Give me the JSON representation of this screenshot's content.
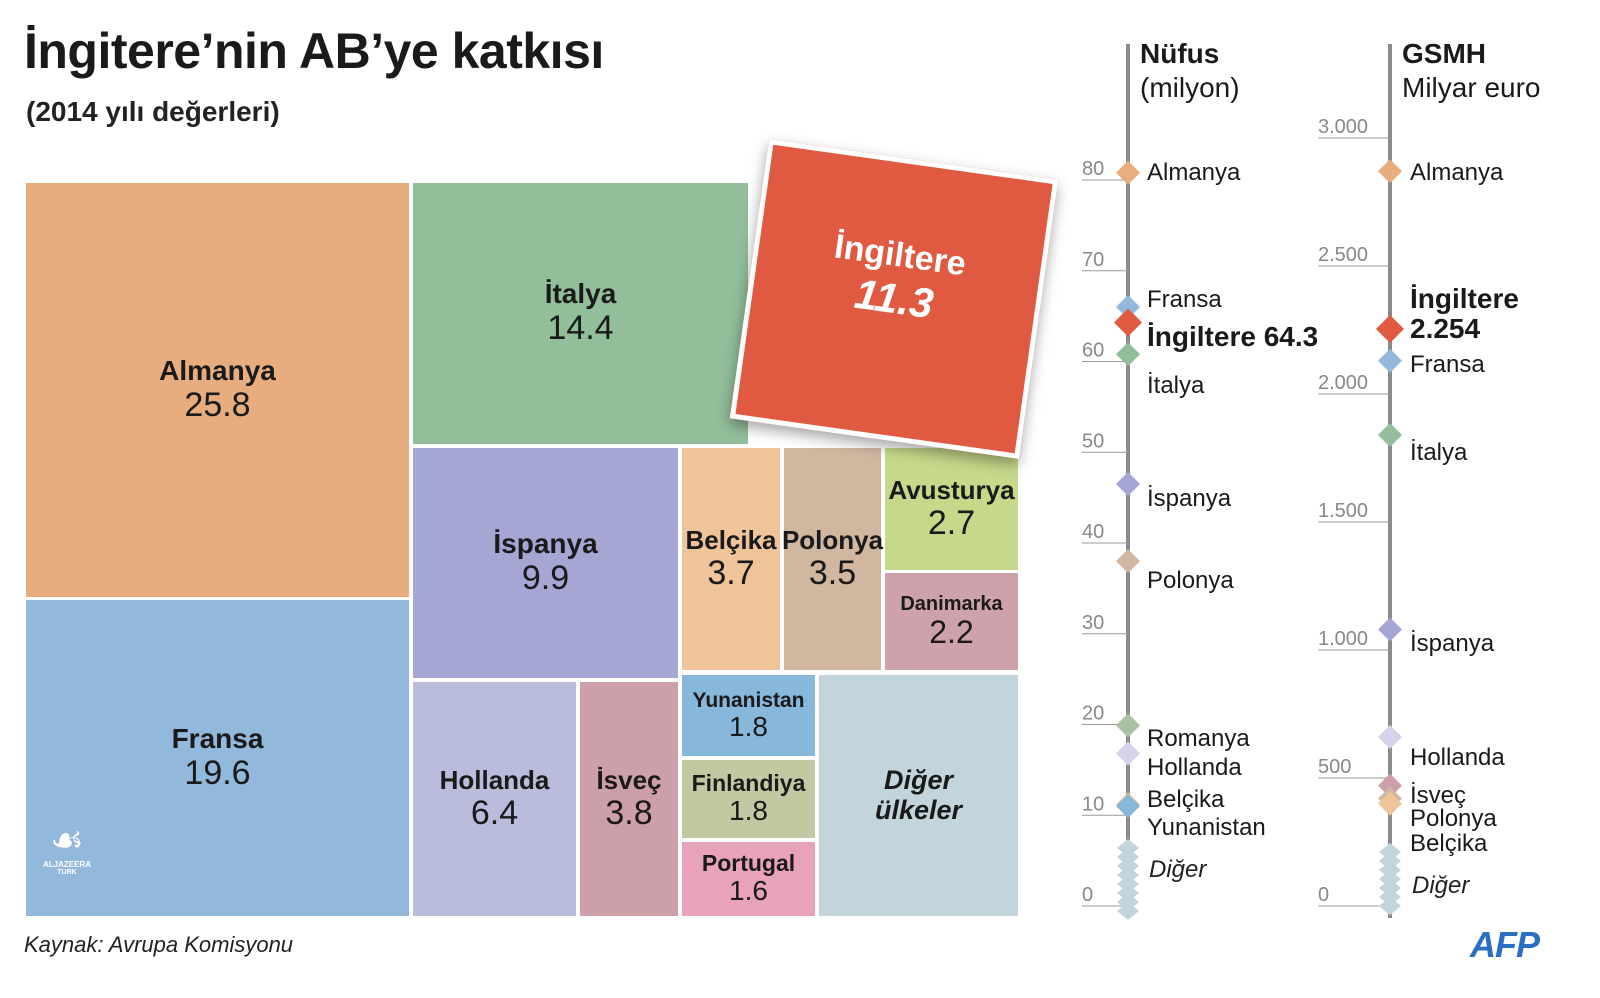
{
  "title": "İngitere’nin AB’ye katkısı",
  "subtitle": "(2014 yılı değerleri)",
  "source": "Kaynak: Avrupa Komisyonu",
  "brand_logo": {
    "glyph": "☙",
    "line1": "ALJAZEERA",
    "line2": "TURK"
  },
  "afp_logo": "AFP",
  "chart_data": [
    {
      "type": "treemap",
      "cells": [
        {
          "label": "Almanya",
          "value": "25.8",
          "color": "#e8ad7e"
        },
        {
          "label": "Fransa",
          "value": "19.6",
          "color": "#92b9dc"
        },
        {
          "label": "İtalya",
          "value": "14.4",
          "color": "#92be9a"
        },
        {
          "label": "İspanya",
          "value": "9.9",
          "color": "#a6a6d4"
        },
        {
          "label": "Belçika",
          "value": "3.7",
          "color": "#f0c49b"
        },
        {
          "label": "Polonya",
          "value": "3.5",
          "color": "#d1b7a0"
        },
        {
          "label": "Avusturya",
          "value": "2.7",
          "color": "#c6d98a"
        },
        {
          "label": "Danimarka",
          "value": "2.2",
          "color": "#cda2aa"
        },
        {
          "label": "Hollanda",
          "value": "6.4",
          "color": "#b9bcda"
        },
        {
          "label": "İsveç",
          "value": "3.8",
          "color": "#cc9fa9"
        },
        {
          "label": "Yunanistan",
          "value": "1.8",
          "color": "#87b7da"
        },
        {
          "label": "Finlandiya",
          "value": "1.8",
          "color": "#c1c9a2"
        },
        {
          "label": "Portugal",
          "value": "1.6",
          "color": "#e8a3bb"
        },
        {
          "label": "Diğer ülkeler",
          "value": "",
          "color": "#c2d5dd"
        }
      ],
      "highlight": {
        "label": "İngiltere",
        "value": "11.3",
        "color": "#e05a42"
      }
    },
    {
      "type": "scatter",
      "title": "Nüfus",
      "subtitle": "(milyon)",
      "ylim": [
        0,
        80
      ],
      "ticks": [
        "0",
        "10",
        "20",
        "30",
        "40",
        "50",
        "60",
        "70",
        "80"
      ],
      "points": [
        {
          "label": "Almanya",
          "y": 80.8,
          "color": "#e8ad7e"
        },
        {
          "label": "Fransa",
          "y": 66.0,
          "color": "#92b9dc"
        },
        {
          "label": "İngiltere 64.3",
          "y": 64.3,
          "color": "#e05a42",
          "highlight": true
        },
        {
          "label": "İtalya",
          "y": 60.8,
          "color": "#92be9a"
        },
        {
          "label": "İspanya",
          "y": 46.5,
          "color": "#a6a6d4"
        },
        {
          "label": "Polonya",
          "y": 38.0,
          "color": "#d1b7a0"
        },
        {
          "label": "Romanya",
          "y": 19.9,
          "color": "#a9c1a3"
        },
        {
          "label": "Hollanda",
          "y": 16.8,
          "color": "#d5d3ea"
        },
        {
          "label": "Belçika",
          "y": 11.2,
          "color": "#f0c49b"
        },
        {
          "label": "Yunanistan",
          "y": 11.0,
          "color": "#87b7da"
        }
      ],
      "other_label": "Diğer"
    },
    {
      "type": "scatter",
      "title": "GSMH",
      "subtitle": "Milyar euro",
      "ylim": [
        0,
        3000
      ],
      "ticks": [
        "0",
        "500",
        "1.000",
        "1.500",
        "2.000",
        "2.500",
        "3.000"
      ],
      "points": [
        {
          "label": "Almanya",
          "y": 2870,
          "color": "#e8ad7e"
        },
        {
          "label": "İngiltere\n2.254",
          "y": 2254,
          "color": "#e05a42",
          "highlight": true
        },
        {
          "label": "Fransa",
          "y": 2130,
          "color": "#92b9dc"
        },
        {
          "label": "İtalya",
          "y": 1840,
          "color": "#92be9a"
        },
        {
          "label": "İspanya",
          "y": 1080,
          "color": "#a6a6d4"
        },
        {
          "label": "Hollanda",
          "y": 660,
          "color": "#d5d3ea"
        },
        {
          "label": "İsveç",
          "y": 470,
          "color": "#cc9fa9"
        },
        {
          "label": "Polonya",
          "y": 420,
          "color": "#d1b7a0"
        },
        {
          "label": "Belçika",
          "y": 400,
          "color": "#f0c49b"
        }
      ],
      "other_label": "Diğer"
    }
  ]
}
